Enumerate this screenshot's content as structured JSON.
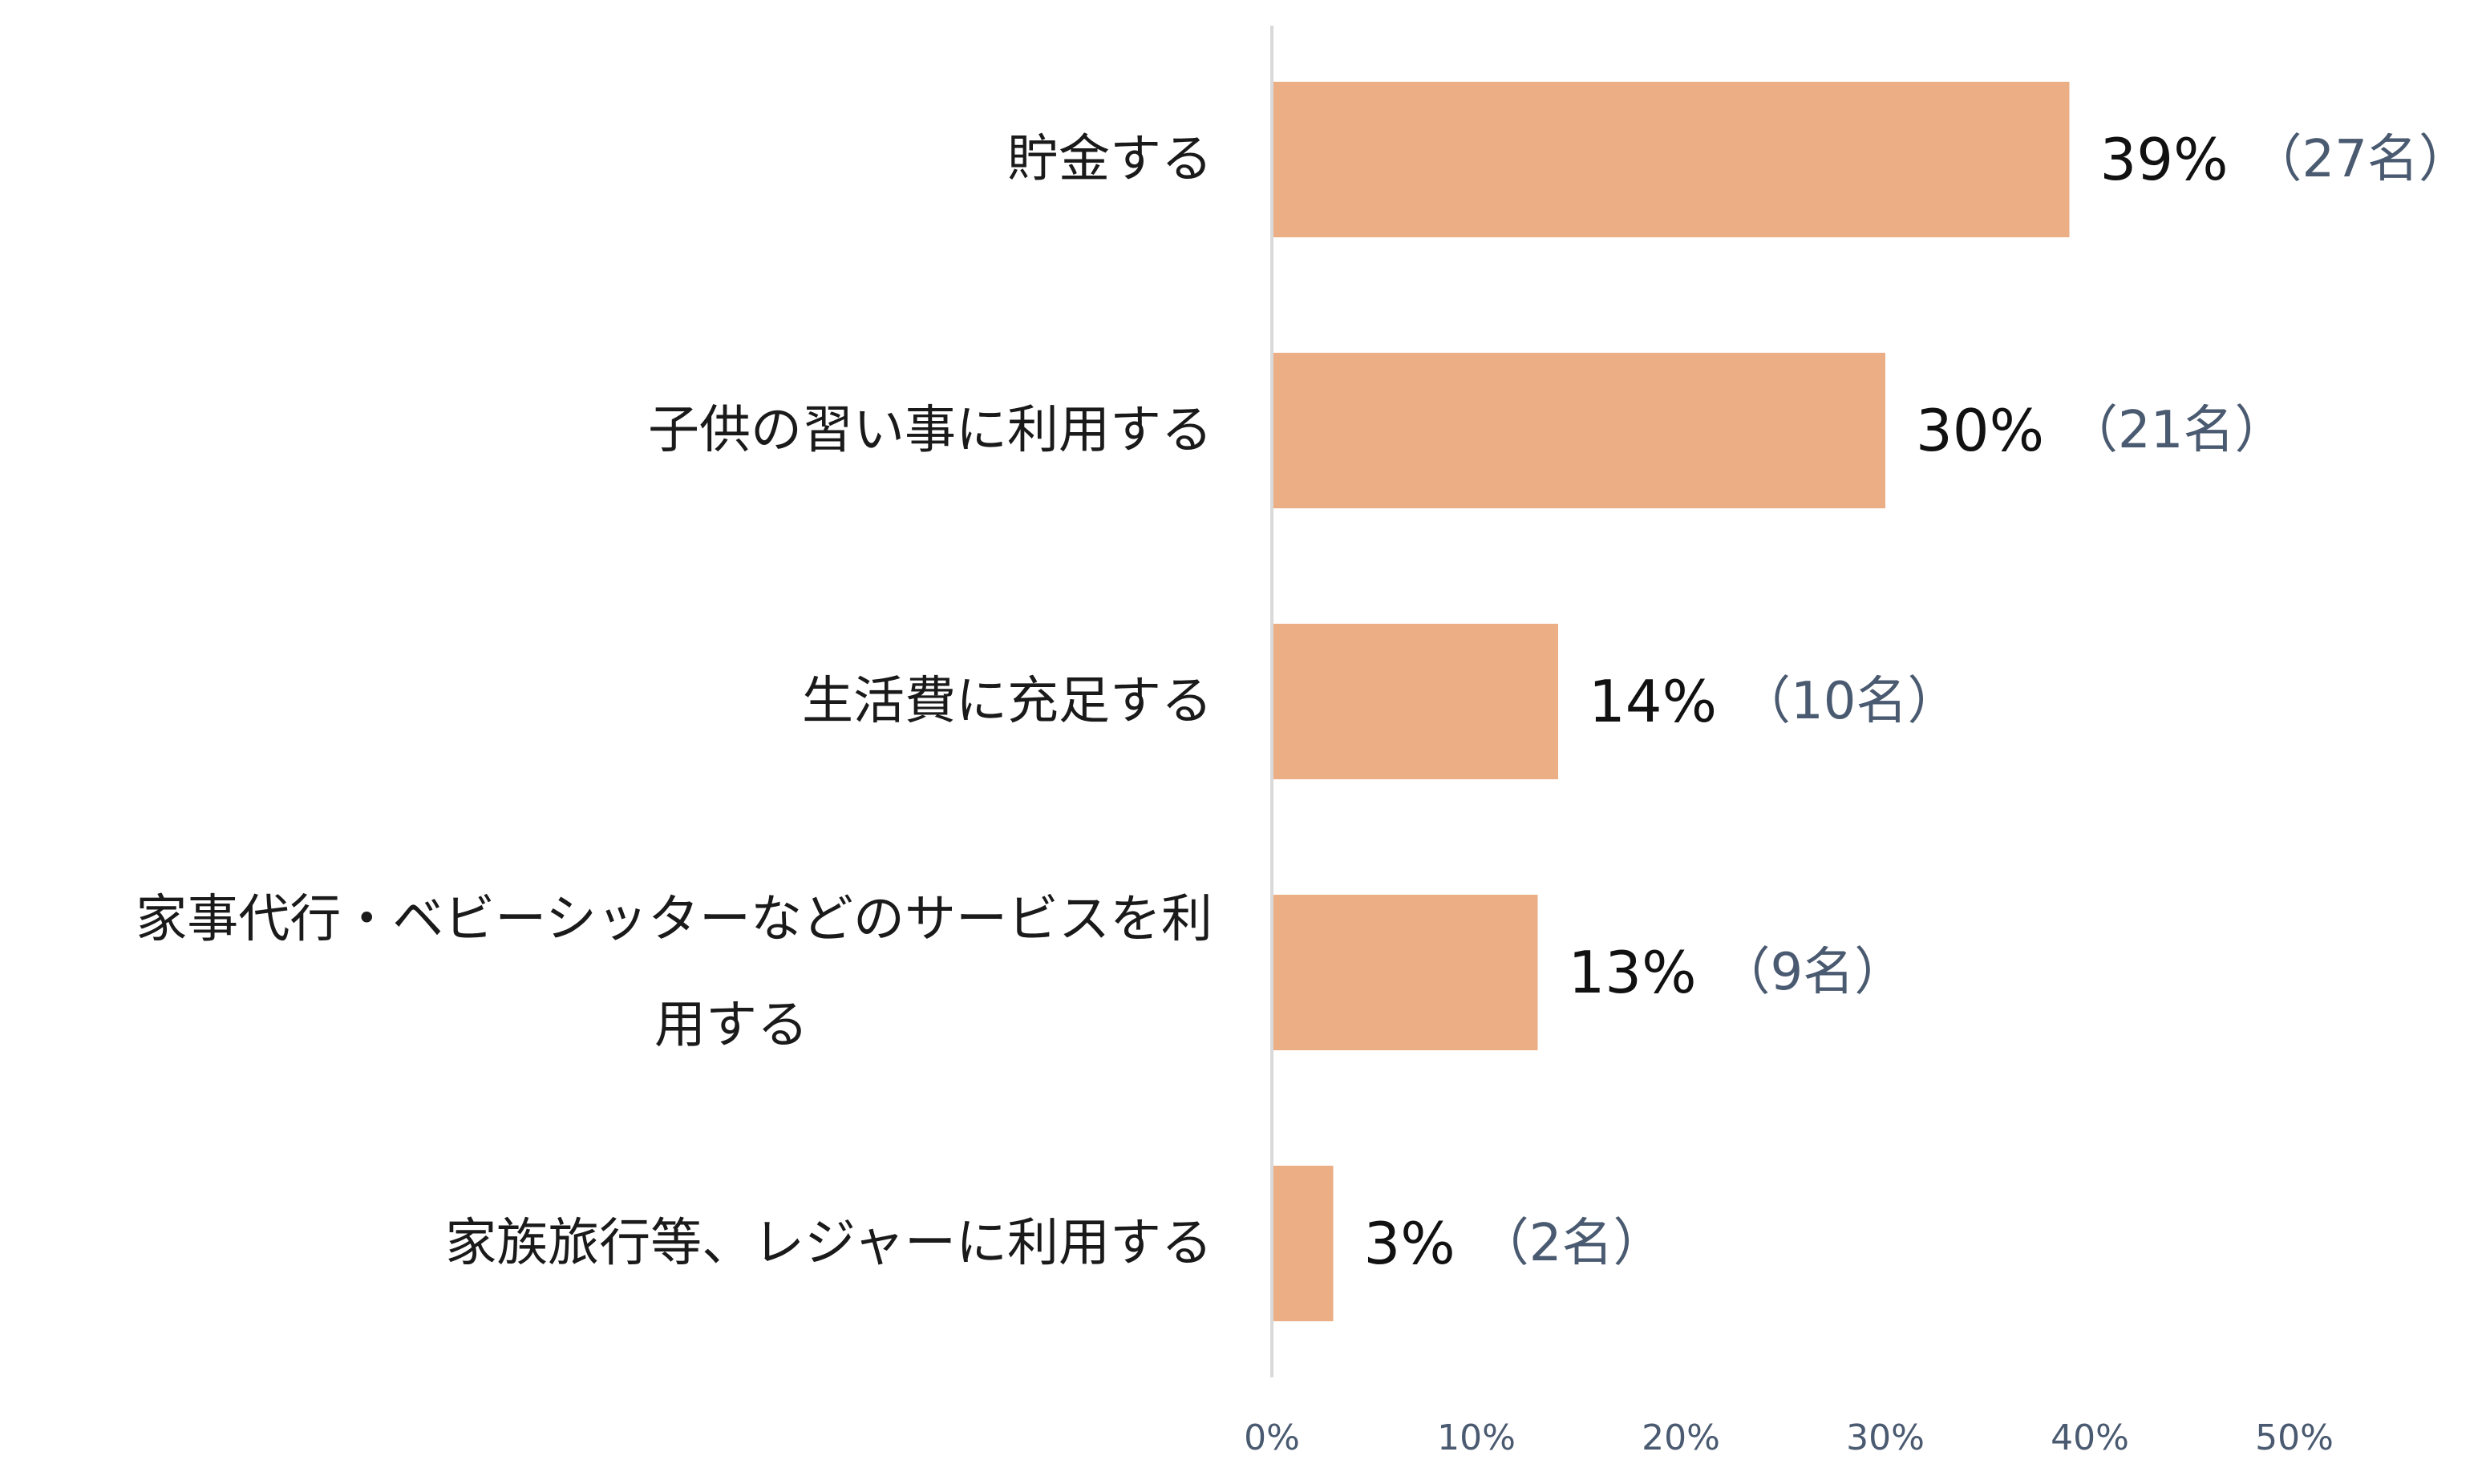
{
  "chart_data": {
    "type": "bar",
    "orientation": "horizontal",
    "categories": [
      [
        "貯金する"
      ],
      [
        "子供の習い事に利用する"
      ],
      [
        "生活費に充足する"
      ],
      [
        "家事代行・ベビーシッターなどのサービスを利",
        "用する"
      ],
      [
        "家族旅行等、レジャーに利用する"
      ]
    ],
    "values": [
      39,
      30,
      14,
      13,
      3
    ],
    "value_labels": [
      "39%",
      "30%",
      "14%",
      "13%",
      "3%"
    ],
    "count_labels": [
      "（27名）",
      "（21名）",
      "（10名）",
      "（9名）",
      "（2名）"
    ],
    "x_ticks": [
      "0%",
      "10%",
      "20%",
      "30%",
      "40%",
      "50%"
    ],
    "xlim": [
      0,
      50
    ],
    "bar_color": "#ecae85",
    "axis_color": "#d9d9d9",
    "count_color": "#4a5a70",
    "grid": false,
    "legend": "none"
  }
}
